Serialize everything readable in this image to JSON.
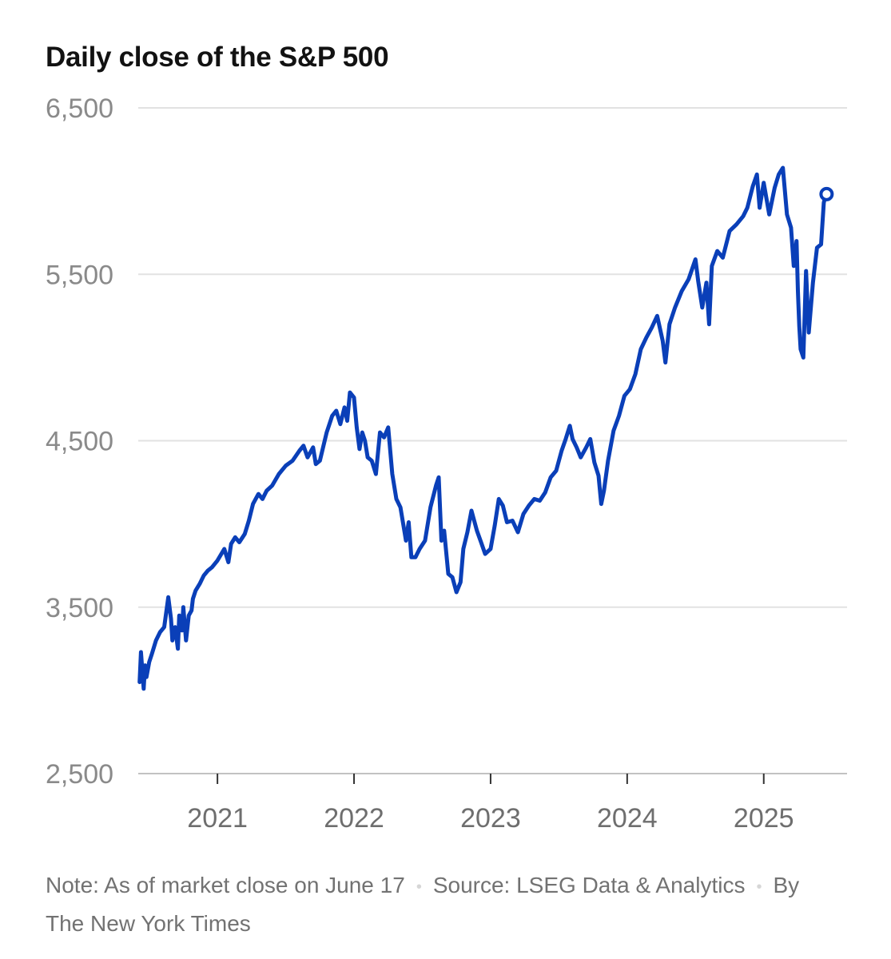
{
  "chart_data": {
    "type": "line",
    "title": "Daily close of the S&P 500",
    "xlabel": "",
    "ylabel": "",
    "ylim": [
      2500,
      6500
    ],
    "yticks": [
      2500,
      3500,
      4500,
      5500,
      6500
    ],
    "ytick_labels": [
      "2,500",
      "3,500",
      "4,500",
      "5,500",
      "6,500"
    ],
    "xlim": [
      2020.42,
      2025.61
    ],
    "xticks": [
      2021,
      2022,
      2023,
      2024,
      2025
    ],
    "xtick_labels": [
      "2021",
      "2022",
      "2023",
      "2024",
      "2025"
    ],
    "series": [
      {
        "name": "S&P 500 daily close",
        "color": "#0a3fb8",
        "x": [
          2020.43,
          2020.44,
          2020.46,
          2020.47,
          2020.48,
          2020.5,
          2020.52,
          2020.55,
          2020.58,
          2020.61,
          2020.64,
          2020.66,
          2020.67,
          2020.69,
          2020.71,
          2020.72,
          2020.74,
          2020.75,
          2020.77,
          2020.79,
          2020.81,
          2020.82,
          2020.84,
          2020.87,
          2020.9,
          2020.93,
          2020.96,
          2021.0,
          2021.05,
          2021.08,
          2021.1,
          2021.13,
          2021.16,
          2021.2,
          2021.23,
          2021.26,
          2021.3,
          2021.33,
          2021.36,
          2021.4,
          2021.45,
          2021.5,
          2021.55,
          2021.6,
          2021.63,
          2021.66,
          2021.7,
          2021.72,
          2021.75,
          2021.8,
          2021.84,
          2021.87,
          2021.9,
          2021.93,
          2021.95,
          2021.97,
          2022.0,
          2022.02,
          2022.04,
          2022.06,
          2022.08,
          2022.1,
          2022.13,
          2022.16,
          2022.19,
          2022.22,
          2022.25,
          2022.28,
          2022.31,
          2022.34,
          2022.37,
          2022.38,
          2022.4,
          2022.42,
          2022.45,
          2022.48,
          2022.52,
          2022.56,
          2022.6,
          2022.62,
          2022.64,
          2022.66,
          2022.69,
          2022.72,
          2022.75,
          2022.78,
          2022.8,
          2022.83,
          2022.86,
          2022.9,
          2022.93,
          2022.96,
          2023.0,
          2023.03,
          2023.06,
          2023.09,
          2023.12,
          2023.16,
          2023.2,
          2023.24,
          2023.28,
          2023.32,
          2023.36,
          2023.4,
          2023.44,
          2023.48,
          2023.52,
          2023.55,
          2023.58,
          2023.6,
          2023.63,
          2023.66,
          2023.7,
          2023.73,
          2023.76,
          2023.79,
          2023.81,
          2023.83,
          2023.86,
          2023.9,
          2023.94,
          2023.98,
          2024.02,
          2024.06,
          2024.1,
          2024.14,
          2024.18,
          2024.22,
          2024.26,
          2024.28,
          2024.31,
          2024.35,
          2024.4,
          2024.45,
          2024.5,
          2024.52,
          2024.55,
          2024.58,
          2024.6,
          2024.62,
          2024.66,
          2024.7,
          2024.75,
          2024.8,
          2024.85,
          2024.88,
          2024.92,
          2024.95,
          2024.97,
          2025.0,
          2025.04,
          2025.08,
          2025.11,
          2025.14,
          2025.17,
          2025.2,
          2025.22,
          2025.24,
          2025.25,
          2025.26,
          2025.27,
          2025.29,
          2025.31,
          2025.33,
          2025.36,
          2025.39,
          2025.42,
          2025.44,
          2025.46
        ],
        "values": [
          3050,
          3230,
          3010,
          3150,
          3080,
          3170,
          3220,
          3300,
          3350,
          3380,
          3560,
          3430,
          3300,
          3380,
          3250,
          3450,
          3360,
          3500,
          3300,
          3450,
          3480,
          3550,
          3600,
          3640,
          3690,
          3720,
          3740,
          3780,
          3850,
          3770,
          3880,
          3920,
          3890,
          3940,
          4020,
          4120,
          4180,
          4150,
          4200,
          4230,
          4300,
          4350,
          4380,
          4440,
          4470,
          4400,
          4460,
          4360,
          4380,
          4550,
          4650,
          4680,
          4600,
          4700,
          4620,
          4790,
          4760,
          4580,
          4450,
          4550,
          4500,
          4400,
          4380,
          4300,
          4550,
          4520,
          4580,
          4300,
          4150,
          4100,
          3950,
          3900,
          4010,
          3800,
          3800,
          3850,
          3900,
          4100,
          4230,
          4280,
          3900,
          3960,
          3700,
          3680,
          3590,
          3650,
          3850,
          3950,
          4080,
          3960,
          3890,
          3820,
          3850,
          3990,
          4150,
          4110,
          4010,
          4020,
          3950,
          4060,
          4110,
          4150,
          4140,
          4190,
          4280,
          4320,
          4440,
          4510,
          4590,
          4510,
          4460,
          4400,
          4460,
          4510,
          4370,
          4290,
          4120,
          4200,
          4380,
          4560,
          4650,
          4770,
          4810,
          4900,
          5050,
          5120,
          5180,
          5250,
          5100,
          4970,
          5200,
          5300,
          5400,
          5470,
          5590,
          5460,
          5300,
          5450,
          5200,
          5550,
          5640,
          5600,
          5760,
          5800,
          5850,
          5900,
          6030,
          6100,
          5900,
          6050,
          5860,
          6020,
          6100,
          6140,
          5860,
          5780,
          5550,
          5700,
          5400,
          5190,
          5050,
          5000,
          5520,
          5150,
          5450,
          5660,
          5680,
          5930,
          6000
        ],
        "end_marker": {
          "x": 2025.46,
          "value": 5982
        }
      }
    ]
  },
  "footer": {
    "note": "Note: As of market close on June 17",
    "separator": "•",
    "source": "Source: LSEG Data & Analytics",
    "byline": "By The New York Times"
  }
}
